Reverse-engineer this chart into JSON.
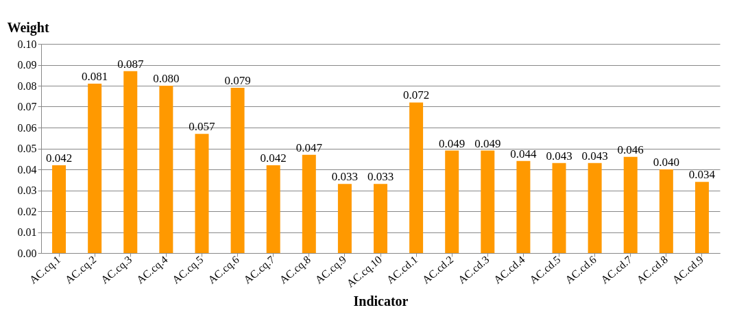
{
  "chart_data": {
    "type": "bar",
    "xlabel": "Indicator",
    "ylabel": "Weight",
    "categories": [
      "AC.cq.1",
      "AC.cq.2",
      "AC.cq.3",
      "AC.cq.4",
      "AC.cq.5",
      "AC.cq.6",
      "AC.cq.7",
      "AC.cq.8",
      "AC.cq.9",
      "AC.cq.10",
      "AC.cd.1",
      "AC.cd.2",
      "AC.cd.3",
      "AC.cd.4",
      "AC.cd.5",
      "AC.cd.6",
      "AC.cd.7",
      "AC.cd.8",
      "AC.cd.9"
    ],
    "series": [
      {
        "color": "#ff9900",
        "values": [
          0.042,
          0.081,
          0.087,
          0.08,
          0.057,
          0.079,
          0.042,
          0.047,
          0.033,
          0.033,
          0.072,
          0.049,
          0.049,
          0.044,
          0.043,
          0.043,
          0.046,
          0.04,
          0.034
        ],
        "value_labels": [
          "0.042",
          "0.081",
          "0.087",
          "0.080",
          "0.057",
          "0.079",
          "0.042",
          "0.047",
          "0.033",
          "0.033",
          "0.072",
          "0.049",
          "0.049",
          "0.044",
          "0.043",
          "0.043",
          "0.046",
          "0.040",
          "0.034"
        ]
      }
    ],
    "ylim": [
      0,
      0.1
    ],
    "yticks": [
      {
        "value": 0,
        "label": "0.00"
      },
      {
        "value": 0.01,
        "label": "0.01"
      },
      {
        "value": 0.02,
        "label": "0.02"
      },
      {
        "value": 0.03,
        "label": "0.03"
      },
      {
        "value": 0.04,
        "label": "0.04"
      },
      {
        "value": 0.05,
        "label": "0.05"
      },
      {
        "value": 0.06,
        "label": "0.06"
      },
      {
        "value": 0.07,
        "label": "0.07"
      },
      {
        "value": 0.08,
        "label": "0.08"
      },
      {
        "value": 0.09,
        "label": "0.09"
      },
      {
        "value": 0.1,
        "label": "0.10"
      }
    ],
    "grid": "y"
  }
}
